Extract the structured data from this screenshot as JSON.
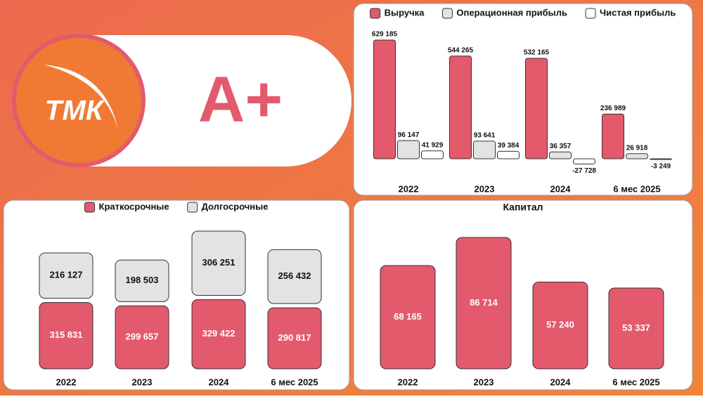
{
  "header": {
    "logo": "ТМК",
    "rating": "A+"
  },
  "chart_data": [
    {
      "type": "bar",
      "categories": [
        "2022",
        "2023",
        "2024",
        "6 мес 2025"
      ],
      "legend": "top",
      "series": [
        {
          "name": "Выручка",
          "color": "#e35a6d",
          "values": [
            629185,
            544265,
            532165,
            236989
          ],
          "value_labels": [
            "629 185",
            "544 265",
            "532 165",
            "236 989"
          ]
        },
        {
          "name": "Операционная прибыль",
          "color": "#e3e3e3",
          "values": [
            96147,
            93641,
            36357,
            26918
          ],
          "value_labels": [
            "96 147",
            "93 641",
            "36 357",
            "26 918"
          ]
        },
        {
          "name": "Чистая прибыль",
          "color": "#ffffff",
          "values": [
            41929,
            39384,
            -27728,
            -3249
          ],
          "value_labels": [
            "41 929",
            "39 384",
            "-27 728",
            "-3 249"
          ]
        }
      ]
    },
    {
      "type": "stacked_bar",
      "categories": [
        "2022",
        "2023",
        "2024",
        "6 мес 2025"
      ],
      "legend": "top",
      "series": [
        {
          "name": "Краткосрочные",
          "color": "#e35a6d",
          "values": [
            315831,
            299657,
            329422,
            290817
          ],
          "value_labels": [
            "315 831",
            "299 657",
            "329 422",
            "290 817"
          ]
        },
        {
          "name": "Долгосрочные",
          "color": "#e3e3e3",
          "values": [
            216127,
            198503,
            306251,
            256432
          ],
          "value_labels": [
            "216 127",
            "198 503",
            "306 251",
            "256 432"
          ]
        }
      ]
    },
    {
      "type": "bar",
      "title": "Капитал",
      "categories": [
        "2022",
        "2023",
        "2024",
        "6 мес 2025"
      ],
      "color": "#e35a6d",
      "values": [
        68165,
        86714,
        57240,
        53337
      ],
      "value_labels": [
        "68 165",
        "86 714",
        "57 240",
        "53 337"
      ]
    }
  ]
}
